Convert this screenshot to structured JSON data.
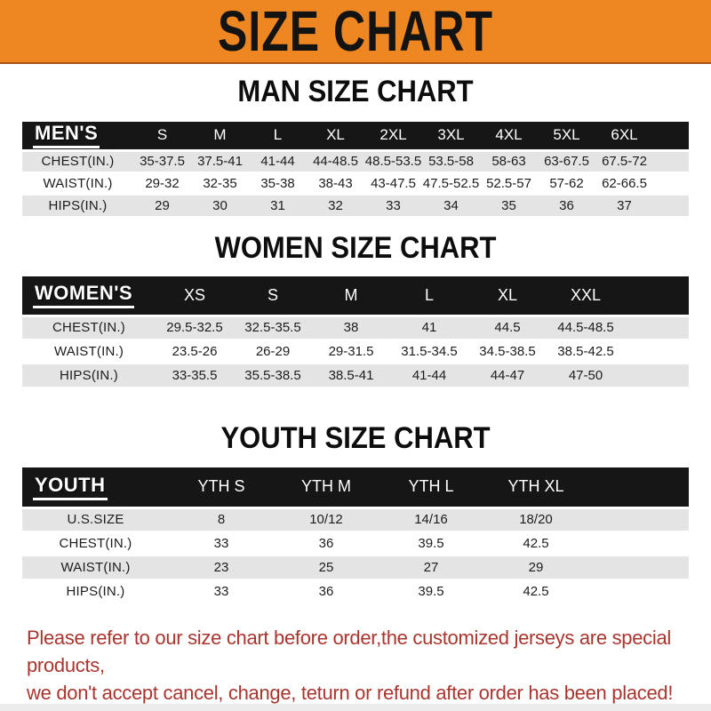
{
  "banner": {
    "title": "SIZE CHART"
  },
  "colors": {
    "banner_bg": "#ee8722",
    "banner_edge": "#a85418",
    "header_bar": "#161616",
    "row_gray": "#e4e4e4",
    "footer_red": "#a8352e"
  },
  "sections": [
    {
      "heading": "MAN SIZE CHART",
      "label": "MEN'S",
      "columns": [
        "S",
        "M",
        "L",
        "XL",
        "2XL",
        "3XL",
        "4XL",
        "5XL",
        "6XL"
      ],
      "rows": [
        {
          "label": "CHEST(IN.)",
          "values": [
            "35-37.5",
            "37.5-41",
            "41-44",
            "44-48.5",
            "48.5-53.5",
            "53.5-58",
            "58-63",
            "63-67.5",
            "67.5-72"
          ]
        },
        {
          "label": "WAIST(IN.)",
          "values": [
            "29-32",
            "32-35",
            "35-38",
            "38-43",
            "43-47.5",
            "47.5-52.5",
            "52.5-57",
            "57-62",
            "62-66.5"
          ]
        },
        {
          "label": "HIPS(IN.)",
          "values": [
            "29",
            "30",
            "31",
            "32",
            "33",
            "34",
            "35",
            "36",
            "37"
          ]
        }
      ]
    },
    {
      "heading": "WOMEN SIZE CHART",
      "label": "WOMEN'S",
      "columns": [
        "XS",
        "S",
        "M",
        "L",
        "XL",
        "XXL"
      ],
      "rows": [
        {
          "label": "CHEST(IN.)",
          "values": [
            "29.5-32.5",
            "32.5-35.5",
            "38",
            "41",
            "44.5",
            "44.5-48.5"
          ]
        },
        {
          "label": "WAIST(IN.)",
          "values": [
            "23.5-26",
            "26-29",
            "29-31.5",
            "31.5-34.5",
            "34.5-38.5",
            "38.5-42.5"
          ]
        },
        {
          "label": "HIPS(IN.)",
          "values": [
            "33-35.5",
            "35.5-38.5",
            "38.5-41",
            "41-44",
            "44-47",
            "47-50"
          ]
        }
      ]
    },
    {
      "heading": "YOUTH SIZE CHART",
      "label": "YOUTH",
      "columns": [
        "YTH S",
        "YTH M",
        "YTH L",
        "YTH XL"
      ],
      "rows": [
        {
          "label": "U.S.SIZE",
          "values": [
            "8",
            "10/12",
            "14/16",
            "18/20"
          ]
        },
        {
          "label": "CHEST(IN.)",
          "values": [
            "33",
            "36",
            "39.5",
            "42.5"
          ]
        },
        {
          "label": "WAIST(IN.)",
          "values": [
            "23",
            "25",
            "27",
            "29"
          ]
        },
        {
          "label": "HIPS(IN.)",
          "values": [
            "33",
            "36",
            "39.5",
            "42.5"
          ]
        }
      ]
    }
  ],
  "footer": {
    "line1": "Please refer to our size chart before order,the customized jerseys are special products,",
    "line2": "we don't accept cancel, change, teturn or refund after order has been placed!"
  }
}
